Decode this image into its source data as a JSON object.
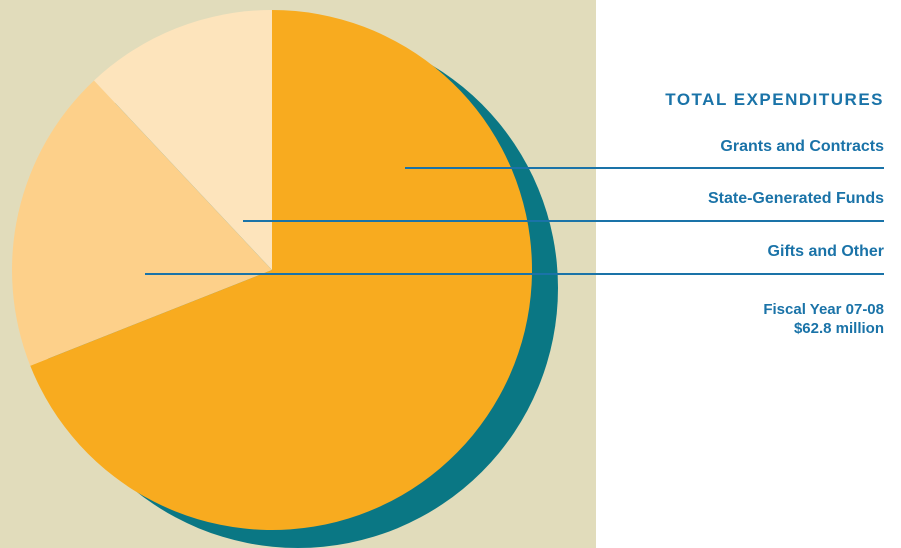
{
  "chart_data": {
    "type": "pie",
    "title": "TOTAL EXPENDITURES",
    "slices": [
      {
        "label": "Grants and Contracts",
        "value": 69,
        "color": "#f8ab1f"
      },
      {
        "label": "State-Generated Funds",
        "value": 19,
        "color": "#fdd08a"
      },
      {
        "label": "Gifts and Other",
        "value": 12,
        "color": "#fde4bc"
      }
    ],
    "footnote": [
      "Fiscal Year 07-08",
      "$62.8 million"
    ]
  },
  "colors": {
    "background": "#e1dcbb",
    "shadow": "#0a7784",
    "accent": "#1a73a8"
  }
}
